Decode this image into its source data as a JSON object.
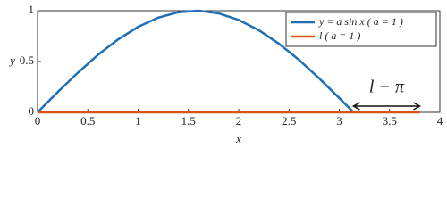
{
  "chart_data": {
    "type": "line",
    "x_label": "x",
    "y_label": "y",
    "series": [
      {
        "name": "y = a sin x  ( a = 1 )",
        "color": "#1f6fb4",
        "x": [
          0,
          0.2,
          0.4,
          0.6,
          0.8,
          1.0,
          1.2,
          1.4,
          1.6,
          1.8,
          2.0,
          2.2,
          2.4,
          2.6,
          2.8,
          3.0,
          3.1416
        ],
        "values": [
          0,
          0.199,
          0.389,
          0.565,
          0.717,
          0.841,
          0.932,
          0.985,
          1.0,
          0.974,
          0.909,
          0.808,
          0.675,
          0.516,
          0.335,
          0.141,
          0
        ]
      },
      {
        "name": "l  ( a = 1 )",
        "color": "#d95319",
        "x": [
          0,
          3.8
        ],
        "values": [
          0,
          0
        ]
      }
    ],
    "annotation": {
      "text": "l − π",
      "x_start": 3.1416,
      "x_end": 3.8
    },
    "xlim": [
      0,
      4
    ],
    "xticks": [
      0,
      0.5,
      1,
      1.5,
      2,
      2.5,
      3,
      3.5,
      4
    ],
    "ylim": [
      0,
      1
    ],
    "yticks": [
      0,
      0.5,
      1
    ],
    "legend": "upper right"
  }
}
